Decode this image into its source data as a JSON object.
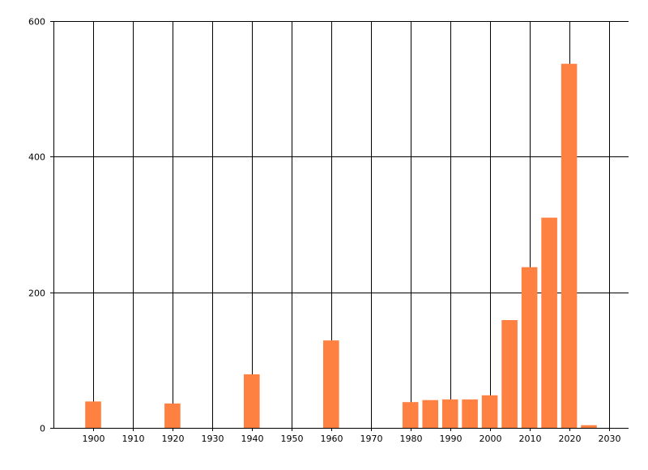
{
  "chart_data": {
    "type": "bar",
    "title": "",
    "xlabel": "",
    "ylabel": "",
    "xlim": [
      1890,
      2035
    ],
    "ylim": [
      0,
      600
    ],
    "grid": true,
    "bar_color": "#FF8142",
    "x_ticks": [
      1900,
      1910,
      1920,
      1930,
      1940,
      1950,
      1960,
      1970,
      1980,
      1990,
      2000,
      2010,
      2020,
      2030
    ],
    "y_ticks": [
      0,
      200,
      400,
      600
    ],
    "x": [
      1900,
      1920,
      1940,
      1960,
      1980,
      1985,
      1990,
      1995,
      2000,
      2005,
      2010,
      2015,
      2020,
      2025
    ],
    "values": [
      39,
      36,
      79,
      129,
      38,
      41,
      42,
      42,
      48,
      159,
      237,
      310,
      537,
      4
    ]
  }
}
